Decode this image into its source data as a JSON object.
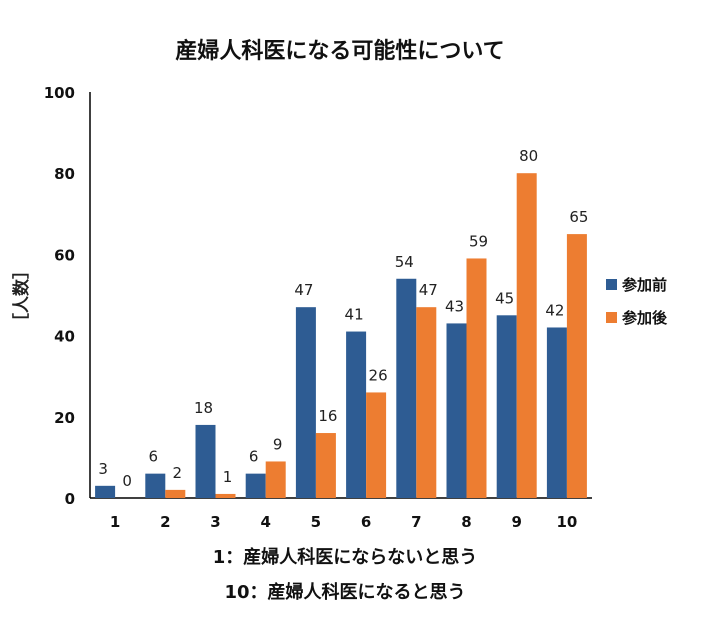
{
  "chart_data": {
    "type": "bar",
    "title": "産婦人科医になる可能性について",
    "ylabel": "［人数］",
    "xlabel": "",
    "categories": [
      "1",
      "2",
      "3",
      "4",
      "5",
      "6",
      "7",
      "8",
      "9",
      "10"
    ],
    "ylim": [
      0,
      100
    ],
    "yticks": [
      0,
      20,
      40,
      60,
      80,
      100
    ],
    "grid": false,
    "legend_position": "right",
    "series": [
      {
        "name": "参加前",
        "color": "#2E5C93",
        "values": [
          3,
          6,
          18,
          6,
          47,
          41,
          54,
          43,
          45,
          42
        ]
      },
      {
        "name": "参加後",
        "color": "#ED7D31",
        "values": [
          0,
          2,
          1,
          9,
          16,
          26,
          47,
          59,
          80,
          65
        ]
      }
    ],
    "annotations": [
      "1：産婦人科医にならないと思う",
      "10：産婦人科医になると思う"
    ]
  }
}
